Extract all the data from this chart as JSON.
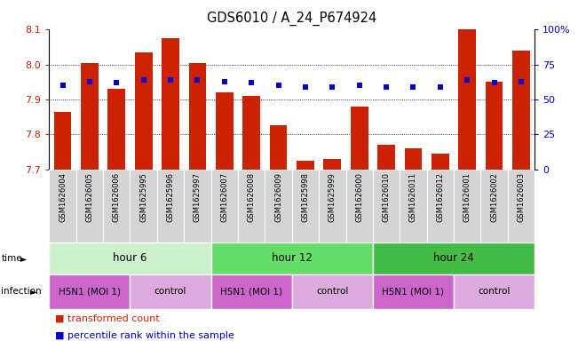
{
  "title": "GDS6010 / A_24_P674924",
  "samples": [
    "GSM1626004",
    "GSM1626005",
    "GSM1626006",
    "GSM1625995",
    "GSM1625996",
    "GSM1625997",
    "GSM1626007",
    "GSM1626008",
    "GSM1626009",
    "GSM1625998",
    "GSM1625999",
    "GSM1626000",
    "GSM1626010",
    "GSM1626011",
    "GSM1626012",
    "GSM1626001",
    "GSM1626002",
    "GSM1626003"
  ],
  "red_values": [
    7.865,
    8.005,
    7.93,
    8.035,
    8.075,
    8.005,
    7.92,
    7.91,
    7.825,
    7.725,
    7.73,
    7.88,
    7.77,
    7.76,
    7.745,
    8.105,
    7.95,
    8.04
  ],
  "blue_values": [
    60,
    63,
    62,
    64,
    64,
    64,
    63,
    62,
    60,
    59,
    59,
    60,
    59,
    59,
    59,
    64,
    62,
    63
  ],
  "ymin": 7.7,
  "ymax": 8.1,
  "y2min": 0,
  "y2max": 100,
  "yticks": [
    7.7,
    7.8,
    7.9,
    8.0,
    8.1
  ],
  "y2ticks": [
    0,
    25,
    50,
    75,
    100
  ],
  "bar_color": "#cc2200",
  "dot_color": "#0000cc",
  "time_groups": [
    {
      "label": "hour 6",
      "start": 0,
      "end": 6,
      "color": "#ccf0cc"
    },
    {
      "label": "hour 12",
      "start": 6,
      "end": 12,
      "color": "#66dd66"
    },
    {
      "label": "hour 24",
      "start": 12,
      "end": 18,
      "color": "#44bb44"
    }
  ],
  "infection_groups": [
    {
      "label": "H5N1 (MOI 1)",
      "start": 0,
      "end": 3,
      "color": "#cc66cc"
    },
    {
      "label": "control",
      "start": 3,
      "end": 6,
      "color": "#ddaadd"
    },
    {
      "label": "H5N1 (MOI 1)",
      "start": 6,
      "end": 9,
      "color": "#cc66cc"
    },
    {
      "label": "control",
      "start": 9,
      "end": 12,
      "color": "#ddaadd"
    },
    {
      "label": "H5N1 (MOI 1)",
      "start": 12,
      "end": 15,
      "color": "#cc66cc"
    },
    {
      "label": "control",
      "start": 15,
      "end": 18,
      "color": "#ddaadd"
    }
  ]
}
